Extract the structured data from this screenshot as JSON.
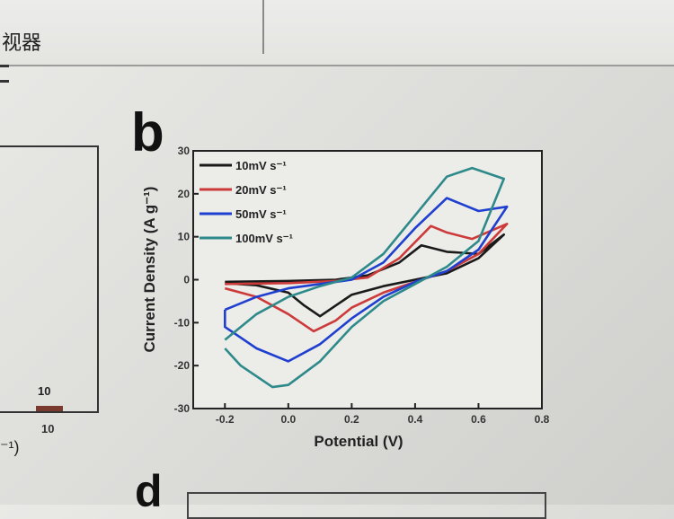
{
  "header": {
    "window_title_fragment": "视器"
  },
  "left_panel": {
    "bar_label": "10",
    "tick_label": "10",
    "unit_fragment": "⁻¹)"
  },
  "panels": {
    "b_label": "b",
    "d_label": "d"
  },
  "chart_data": {
    "type": "line",
    "title": "",
    "xlabel": "Potential (V)",
    "ylabel": "Current Density (A g⁻¹)",
    "xlim": [
      -0.3,
      0.8
    ],
    "ylim": [
      -30,
      30
    ],
    "xticks": [
      "-0.2",
      "0.0",
      "0.2",
      "0.4",
      "0.6",
      "0.8"
    ],
    "xtick_values": [
      -0.2,
      0.0,
      0.2,
      0.4,
      0.6,
      0.8
    ],
    "yticks": [
      "30",
      "20",
      "10",
      "0",
      "-10",
      "-20",
      "-30"
    ],
    "ytick_values": [
      30,
      20,
      10,
      0,
      -10,
      -20,
      -30
    ],
    "grid": false,
    "legend_position": "top-left",
    "series": [
      {
        "name": "10mV s⁻¹",
        "color": "#1a1a1a",
        "x": [
          -0.2,
          0.0,
          0.15,
          0.25,
          0.35,
          0.42,
          0.5,
          0.6,
          0.68,
          0.68,
          0.6,
          0.5,
          0.4,
          0.3,
          0.2,
          0.15,
          0.1,
          0.05,
          0.0,
          -0.1,
          -0.2
        ],
        "y": [
          -0.5,
          -0.3,
          0.0,
          1.0,
          4.0,
          8.0,
          6.5,
          6.0,
          10.5,
          10.5,
          5.0,
          1.5,
          0.0,
          -1.5,
          -3.5,
          -6.0,
          -8.5,
          -6.0,
          -3.0,
          -1.3,
          -0.8
        ]
      },
      {
        "name": "20mV s⁻¹",
        "color": "#cc3a3a",
        "x": [
          -0.2,
          0.0,
          0.15,
          0.25,
          0.35,
          0.45,
          0.5,
          0.58,
          0.69,
          0.69,
          0.6,
          0.5,
          0.4,
          0.3,
          0.2,
          0.15,
          0.08,
          0.0,
          -0.1,
          -0.2
        ],
        "y": [
          -1.0,
          -0.8,
          -0.3,
          0.5,
          5.0,
          12.5,
          11.0,
          9.5,
          13.0,
          13.0,
          6.0,
          2.0,
          -0.5,
          -3.0,
          -6.5,
          -9.5,
          -12.0,
          -8.0,
          -4.0,
          -2.0
        ]
      },
      {
        "name": "50mV s⁻¹",
        "color": "#1f3fd0",
        "x": [
          -0.2,
          -0.1,
          0.0,
          0.1,
          0.2,
          0.3,
          0.4,
          0.5,
          0.6,
          0.69,
          0.69,
          0.6,
          0.5,
          0.4,
          0.3,
          0.2,
          0.1,
          0.0,
          -0.1,
          -0.2,
          -0.2
        ],
        "y": [
          -7.0,
          -4.0,
          -2.0,
          -1.0,
          0.0,
          4.0,
          12.0,
          19.0,
          16.0,
          17.0,
          17.0,
          7.0,
          2.0,
          -0.5,
          -4.0,
          -9.0,
          -15.0,
          -19.0,
          -16.0,
          -11.0,
          -7.0
        ]
      },
      {
        "name": "100mV s⁻¹",
        "color": "#2e8a8a",
        "x": [
          -0.2,
          -0.1,
          0.0,
          0.1,
          0.2,
          0.3,
          0.4,
          0.5,
          0.58,
          0.68,
          0.68,
          0.6,
          0.5,
          0.4,
          0.3,
          0.2,
          0.1,
          0.0,
          -0.05,
          -0.15,
          -0.2
        ],
        "y": [
          -14.0,
          -8.0,
          -4.0,
          -1.5,
          0.5,
          6.0,
          15.0,
          24.0,
          26.0,
          23.5,
          23.5,
          9.0,
          3.0,
          -1.0,
          -5.0,
          -11.0,
          -19.0,
          -24.5,
          -25.0,
          -20.0,
          -16.0
        ]
      }
    ]
  }
}
